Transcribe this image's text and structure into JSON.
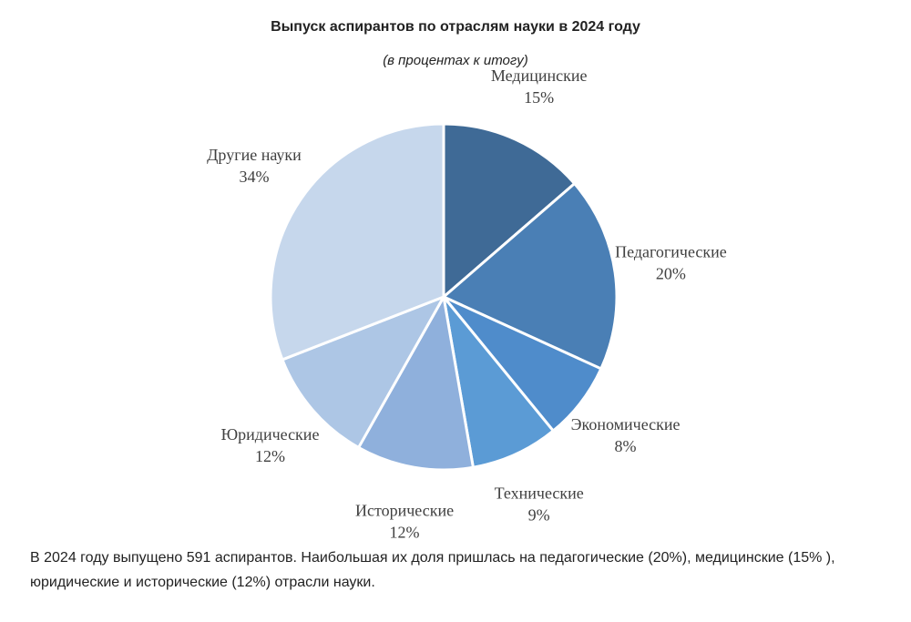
{
  "chart_data": {
    "type": "pie",
    "title": "Выпуск аспирантов по отраслям науки в 2024 году",
    "subtitle": "(в процентах к итогу)",
    "categories": [
      "Медицинские",
      "Педагогические",
      "Экономические",
      "Технические",
      "Исторические",
      "Юридические",
      "Другие науки"
    ],
    "values": [
      15,
      20,
      8,
      9,
      12,
      12,
      34
    ],
    "value_labels": [
      "15%",
      "20%",
      "8%",
      "9%",
      "12%",
      "12%",
      "34%"
    ],
    "colors": [
      "#3f6a96",
      "#4a7fb5",
      "#4f8ccb",
      "#5b9bd5",
      "#8fb0dc",
      "#adc6e5",
      "#c6d7ec"
    ]
  },
  "text": "В 2024 году  выпущено 591 аспирантов. Наибольшая их доля пришлась на педагогические (20%), медицинские (15% ), юридические и исторические (12%) отрасли науки."
}
